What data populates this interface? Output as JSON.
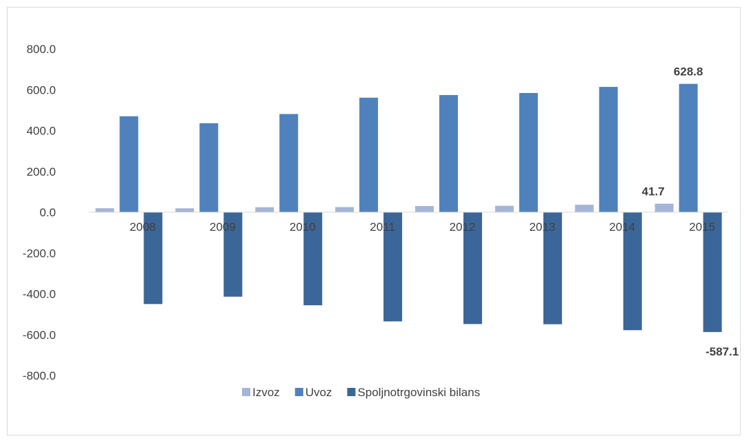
{
  "chart_data": {
    "type": "bar",
    "categories": [
      "2008",
      "2009",
      "2010",
      "2011",
      "2012",
      "2013",
      "2014",
      "2015"
    ],
    "series": [
      {
        "name": "Izvoz",
        "color": "#a5b5d8",
        "values": [
          19.5,
          19.0,
          24.5,
          25.0,
          30.5,
          31.5,
          36.5,
          41.7
        ]
      },
      {
        "name": "Uvoz",
        "color": "#4f81bd",
        "values": [
          470,
          436,
          481,
          561,
          574,
          584,
          614,
          628.8
        ]
      },
      {
        "name": "Spoljnotrgovinski bilans",
        "color": "#3b6698",
        "values": [
          -450,
          -414,
          -456,
          -535,
          -548,
          -549,
          -578,
          -587.1
        ]
      }
    ],
    "ylim": [
      -800,
      800
    ],
    "yticks": [
      "800.0",
      "600.0",
      "400.0",
      "200.0",
      "0.0",
      "-200.0",
      "-400.0",
      "-600.0",
      "-800.0"
    ],
    "data_labels": [
      {
        "series": 0,
        "index": 7,
        "text": "41.7"
      },
      {
        "series": 1,
        "index": 7,
        "text": "628.8"
      },
      {
        "series": 2,
        "index": 7,
        "text": "-587.1"
      }
    ],
    "legend_position": "bottom",
    "grid": false
  }
}
